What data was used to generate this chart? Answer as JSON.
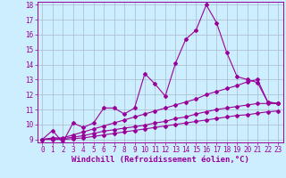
{
  "background_color": "#cceeff",
  "grid_color": "#aabbcc",
  "line_color": "#990099",
  "xlabel": "Windchill (Refroidissement éolien,°C)",
  "xlim": [
    -0.5,
    23.5
  ],
  "ylim": [
    8.8,
    18.2
  ],
  "yticks": [
    9,
    10,
    11,
    12,
    13,
    14,
    15,
    16,
    17,
    18
  ],
  "xticks": [
    0,
    1,
    2,
    3,
    4,
    5,
    6,
    7,
    8,
    9,
    10,
    11,
    12,
    13,
    14,
    15,
    16,
    17,
    18,
    19,
    20,
    21,
    22,
    23
  ],
  "series1_x": [
    0,
    1,
    2,
    3,
    4,
    5,
    6,
    7,
    8,
    9,
    10,
    11,
    12,
    13,
    14,
    15,
    16,
    17,
    18,
    19,
    20,
    21,
    22,
    23
  ],
  "series1_y": [
    9.0,
    9.6,
    8.8,
    10.1,
    9.8,
    10.1,
    11.1,
    11.1,
    10.7,
    11.1,
    13.4,
    12.7,
    11.9,
    14.1,
    15.7,
    16.3,
    18.0,
    16.8,
    14.8,
    13.2,
    13.0,
    12.8,
    11.5,
    11.4
  ],
  "series2_x": [
    0,
    1,
    2,
    3,
    4,
    5,
    6,
    7,
    8,
    9,
    10,
    11,
    12,
    13,
    14,
    15,
    16,
    17,
    18,
    19,
    20,
    21,
    22,
    23
  ],
  "series2_y": [
    9.0,
    9.1,
    9.1,
    9.3,
    9.5,
    9.7,
    9.9,
    10.1,
    10.3,
    10.5,
    10.7,
    10.9,
    11.1,
    11.3,
    11.5,
    11.7,
    12.0,
    12.2,
    12.4,
    12.6,
    12.85,
    13.0,
    11.5,
    11.4
  ],
  "series3_x": [
    0,
    1,
    2,
    3,
    4,
    5,
    6,
    7,
    8,
    9,
    10,
    11,
    12,
    13,
    14,
    15,
    16,
    17,
    18,
    19,
    20,
    21,
    22,
    23
  ],
  "series3_y": [
    9.0,
    9.05,
    9.05,
    9.15,
    9.25,
    9.4,
    9.55,
    9.65,
    9.75,
    9.85,
    9.95,
    10.1,
    10.2,
    10.4,
    10.5,
    10.7,
    10.85,
    11.0,
    11.1,
    11.2,
    11.3,
    11.4,
    11.4,
    11.4
  ],
  "series4_x": [
    0,
    1,
    2,
    3,
    4,
    5,
    6,
    7,
    8,
    9,
    10,
    11,
    12,
    13,
    14,
    15,
    16,
    17,
    18,
    19,
    20,
    21,
    22,
    23
  ],
  "series4_y": [
    9.0,
    9.0,
    9.0,
    9.05,
    9.1,
    9.2,
    9.3,
    9.4,
    9.5,
    9.6,
    9.7,
    9.8,
    9.9,
    10.0,
    10.1,
    10.2,
    10.3,
    10.4,
    10.5,
    10.6,
    10.65,
    10.75,
    10.85,
    10.9
  ],
  "tick_fontsize": 5.5,
  "xlabel_fontsize": 6.5
}
